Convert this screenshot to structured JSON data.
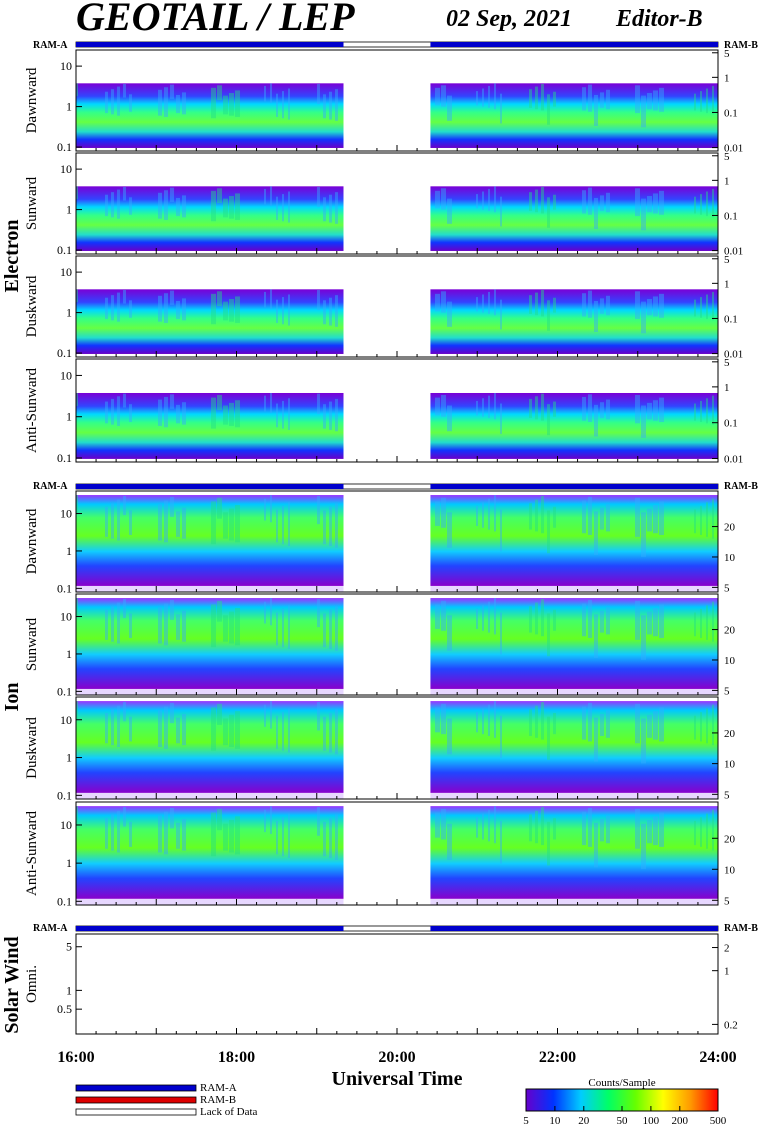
{
  "header": {
    "title": "GEOTAIL / LEP",
    "date": "02 Sep, 2021",
    "editor": "Editor-B"
  },
  "groups": [
    {
      "key": "electron",
      "label": "Electron"
    },
    {
      "key": "ion",
      "label": "Ion"
    },
    {
      "key": "sw",
      "label": "Solar Wind"
    }
  ],
  "mode_bars": {
    "left_label": "RAM-A",
    "right_label": "RAM-B"
  },
  "colors": {
    "ram_a": "#0000cc",
    "ram_b": "#dd0000",
    "lack": "#ffffff"
  },
  "chart_data": {
    "type": "heatmap",
    "x_axis": {
      "label": "Universal Time",
      "range": [
        "16:00",
        "24:00"
      ],
      "ticks": [
        "16:00",
        "18:00",
        "20:00",
        "22:00",
        "24:00"
      ]
    },
    "data_gap": {
      "start": "19:20",
      "end": "20:25"
    },
    "panels": [
      {
        "group": "electron",
        "label": "Dawnward",
        "left_ticks": [
          "10",
          "1",
          "0.1"
        ],
        "right_ticks": [
          "5",
          "1",
          "0.1",
          "0.01"
        ]
      },
      {
        "group": "electron",
        "label": "Sunward",
        "left_ticks": [
          "10",
          "1",
          "0.1"
        ],
        "right_ticks": [
          "5",
          "1",
          "0.1",
          "0.01"
        ]
      },
      {
        "group": "electron",
        "label": "Duskward",
        "left_ticks": [
          "10",
          "1",
          "0.1"
        ],
        "right_ticks": [
          "5",
          "1",
          "0.1",
          "0.01"
        ]
      },
      {
        "group": "electron",
        "label": "Anti-Sunward",
        "left_ticks": [
          "10",
          "1",
          "0.1"
        ],
        "right_ticks": [
          "5",
          "1",
          "0.1",
          "0.01"
        ]
      },
      {
        "group": "ion",
        "label": "Dawnward",
        "left_ticks": [
          "10",
          "1",
          "0.1"
        ],
        "right_ticks": [
          "20",
          "10",
          "5"
        ]
      },
      {
        "group": "ion",
        "label": "Sunward",
        "left_ticks": [
          "10",
          "1",
          "0.1"
        ],
        "right_ticks": [
          "20",
          "10",
          "5"
        ]
      },
      {
        "group": "ion",
        "label": "Duskward",
        "left_ticks": [
          "10",
          "1",
          "0.1"
        ],
        "right_ticks": [
          "20",
          "10",
          "5"
        ]
      },
      {
        "group": "ion",
        "label": "Anti-Sunward",
        "left_ticks": [
          "10",
          "1",
          "0.1"
        ],
        "right_ticks": [
          "20",
          "10",
          "5"
        ]
      },
      {
        "group": "sw",
        "label": "Omni.",
        "left_ticks": [
          "5",
          "1",
          "0.5"
        ],
        "right_ticks": [
          "2",
          "1",
          "0.2"
        ]
      }
    ],
    "colorbar": {
      "title": "Counts/Sample",
      "scale": "log",
      "ticks": [
        "5",
        "10",
        "20",
        "50",
        "100",
        "200",
        "500"
      ],
      "colors": [
        "#6600cc",
        "#0033ff",
        "#00ccff",
        "#00ff66",
        "#66ff00",
        "#ffff00",
        "#ff9900",
        "#ff0000"
      ]
    },
    "legend": [
      {
        "label": "RAM-A",
        "color": "#0000cc"
      },
      {
        "label": "RAM-B",
        "color": "#dd0000"
      },
      {
        "label": "Lack of Data",
        "color": "#ffffff"
      }
    ]
  }
}
